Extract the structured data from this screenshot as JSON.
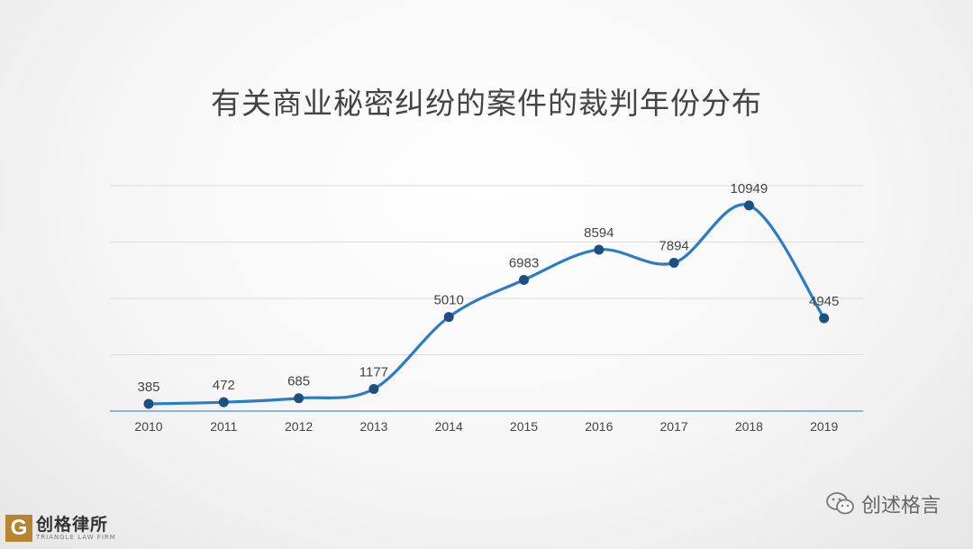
{
  "title": "有关商业秘密纠纷的案件的裁判年份分布",
  "brand": {
    "name": "创格律所",
    "sub": "TRIANGLE LAW FIRM"
  },
  "watermark": {
    "text": "创述格言",
    "icon": "wechat-icon"
  },
  "colors": {
    "line": "#2a7cc7",
    "point": "#1d4f82",
    "axis": "#4a90d9",
    "grid": "#dcdcdc",
    "brand": "#b8842f"
  },
  "chart_data": {
    "type": "line",
    "title": "有关商业秘密纠纷的案件的裁判年份分布",
    "xlabel": "",
    "ylabel": "",
    "categories": [
      "2010",
      "2011",
      "2012",
      "2013",
      "2014",
      "2015",
      "2016",
      "2017",
      "2018",
      "2019"
    ],
    "series": [
      {
        "values": [
          385,
          472,
          685,
          1177,
          5010,
          6983,
          8594,
          7894,
          10949,
          4945
        ]
      }
    ],
    "ylim": [
      0,
      12000
    ],
    "grid": true,
    "smooth": true,
    "data_labels": true,
    "legend": "none"
  }
}
